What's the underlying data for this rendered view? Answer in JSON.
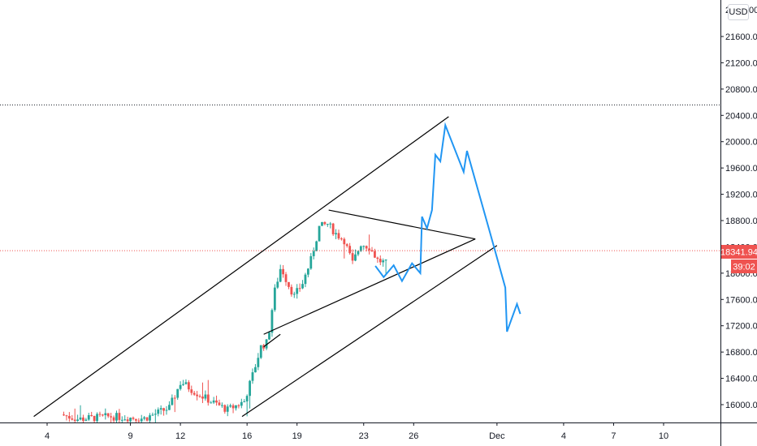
{
  "currency": "USD",
  "price_label": "18341.94",
  "countdown_label": "39:02",
  "colors": {
    "up": "#26a69a",
    "down": "#ef5350",
    "projection": "#2196f3",
    "trendline": "#000000",
    "price_line": "#ef5350",
    "tag": "#ef5350",
    "grid": "#e0e3eb"
  },
  "chart_data": {
    "type": "candlestick",
    "title": "",
    "yaxis": {
      "ticks": [
        "21600.00",
        "21200.00",
        "20800.00",
        "20400.00",
        "20000.00",
        "19600.00",
        "19200.00",
        "18800.00",
        "18400.00",
        "18000.00",
        "17600.00",
        "17200.00",
        "16800.00",
        "16400.00",
        "16000.00"
      ],
      "top_partial_label": "2",
      "top_partial_label_end": "00",
      "range": [
        15780,
        22100
      ]
    },
    "xaxis": {
      "ticks": [
        {
          "label": "4",
          "day": 4
        },
        {
          "label": "9",
          "day": 9
        },
        {
          "label": "12",
          "day": 12
        },
        {
          "label": "16",
          "day": 16
        },
        {
          "label": "19",
          "day": 19
        },
        {
          "label": "23",
          "day": 23
        },
        {
          "label": "26",
          "day": 26
        },
        {
          "label": "Dec",
          "day": 31
        },
        {
          "label": "4",
          "day": 35
        },
        {
          "label": "7",
          "day": 38
        },
        {
          "label": "10",
          "day": 41
        }
      ],
      "range_days": [
        3.0,
        44.2
      ],
      "unit": "days since Nov 1"
    },
    "current_price": 18341.94,
    "horizontal_levels": [
      20560
    ],
    "channel_lines": [
      {
        "name": "upper",
        "points": [
          [
            3.2,
            15820
          ],
          [
            28.1,
            20380
          ]
        ]
      },
      {
        "name": "lower",
        "points": [
          [
            15.7,
            15820
          ],
          [
            31.0,
            18420
          ]
        ]
      }
    ],
    "triangle_lines": [
      {
        "name": "upper",
        "points": [
          [
            20.9,
            18960
          ],
          [
            29.7,
            18520
          ]
        ]
      },
      {
        "name": "lower",
        "points": [
          [
            17.0,
            17070
          ],
          [
            29.7,
            18520
          ]
        ]
      },
      {
        "name": "base",
        "points": [
          [
            17.0,
            16880
          ],
          [
            18.0,
            17070
          ]
        ]
      }
    ],
    "projection": {
      "points": [
        [
          23.7,
          18110
        ],
        [
          24.2,
          17940
        ],
        [
          24.8,
          18120
        ],
        [
          25.3,
          17880
        ],
        [
          25.9,
          18150
        ],
        [
          26.4,
          18000
        ],
        [
          26.5,
          18860
        ],
        [
          26.8,
          18680
        ],
        [
          27.1,
          18960
        ],
        [
          27.3,
          19800
        ],
        [
          27.6,
          19700
        ],
        [
          27.9,
          20250
        ],
        [
          29.0,
          19540
        ],
        [
          29.2,
          19860
        ],
        [
          30.6,
          18600
        ],
        [
          31.5,
          17780
        ],
        [
          31.6,
          17110
        ],
        [
          32.2,
          17530
        ],
        [
          32.4,
          17380
        ]
      ]
    },
    "candle_range_days": [
      5.0,
      24.5
    ],
    "candle_segments": [
      {
        "day": 5.0,
        "price": 15850
      },
      {
        "day": 6.0,
        "price": 15780
      },
      {
        "day": 8.0,
        "price": 15820
      },
      {
        "day": 10.0,
        "price": 15790
      },
      {
        "day": 11.5,
        "price": 15950
      },
      {
        "day": 12.2,
        "price": 16350
      },
      {
        "day": 13.0,
        "price": 16200
      },
      {
        "day": 14.0,
        "price": 16050
      },
      {
        "day": 15.0,
        "price": 15920
      },
      {
        "day": 16.0,
        "price": 16050
      },
      {
        "day": 16.5,
        "price": 16450
      },
      {
        "day": 17.0,
        "price": 16880
      },
      {
        "day": 17.4,
        "price": 16950
      },
      {
        "day": 17.8,
        "price": 17700
      },
      {
        "day": 18.2,
        "price": 18100
      },
      {
        "day": 18.6,
        "price": 17850
      },
      {
        "day": 19.0,
        "price": 17650
      },
      {
        "day": 19.5,
        "price": 17850
      },
      {
        "day": 20.0,
        "price": 18200
      },
      {
        "day": 20.5,
        "price": 18700
      },
      {
        "day": 21.0,
        "price": 18750
      },
      {
        "day": 21.5,
        "price": 18600
      },
      {
        "day": 22.0,
        "price": 18500
      },
      {
        "day": 22.5,
        "price": 18150
      },
      {
        "day": 23.0,
        "price": 18450
      },
      {
        "day": 23.5,
        "price": 18400
      },
      {
        "day": 24.0,
        "price": 18200
      },
      {
        "day": 24.5,
        "price": 18150
      }
    ],
    "candle_volatility": 55,
    "bars_per_day": 6
  }
}
